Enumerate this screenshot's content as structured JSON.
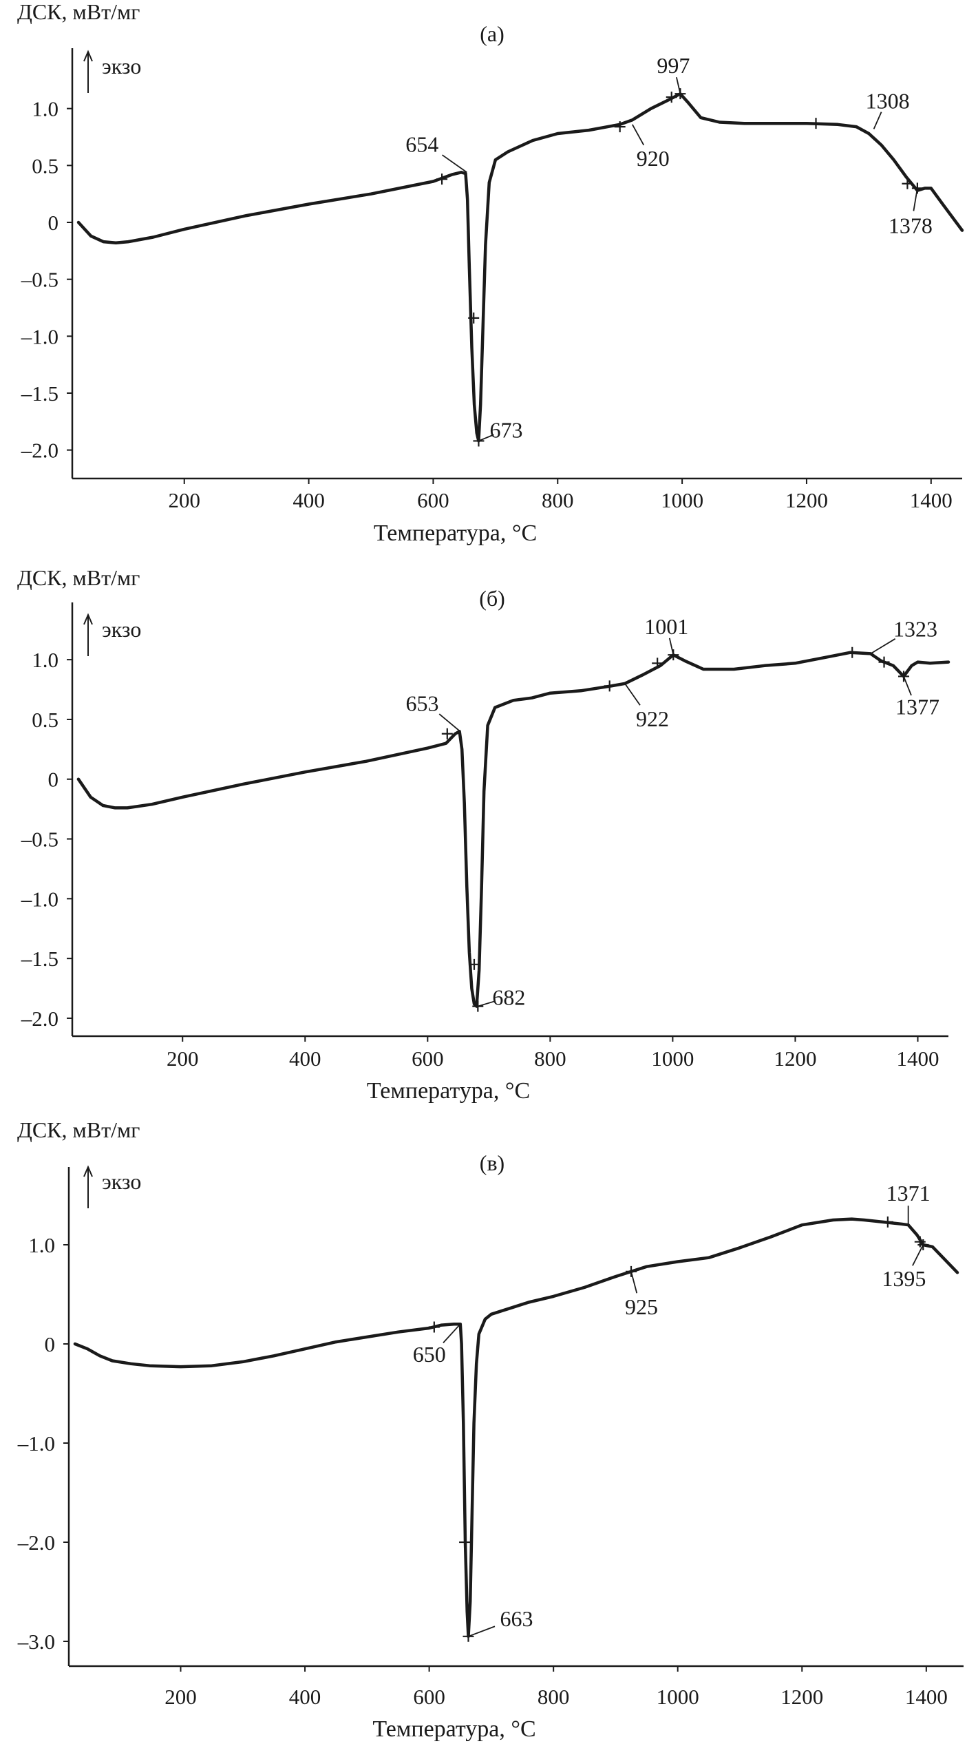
{
  "chart_data": [
    {
      "type": "line",
      "panel_label": "(а)",
      "ylabel": "ДСК, мВт/мг",
      "exo_label": "экзо",
      "xlabel": "Температура, °С",
      "xlim": [
        20,
        1450
      ],
      "ylim": [
        -2.25,
        1.5
      ],
      "xticks": [
        200,
        400,
        600,
        800,
        1000,
        1200,
        1400
      ],
      "xtick_labels": [
        "200",
        "400",
        "600",
        "800",
        "1000",
        "1200",
        "1400"
      ],
      "yticks": [
        1.0,
        0.5,
        0,
        -0.5,
        -1.0,
        -1.5,
        -2.0
      ],
      "ytick_labels": [
        "1.0",
        "0.5",
        "0",
        "–0.5",
        "–1.0",
        "–1.5",
        "–2.0"
      ],
      "series": [
        {
          "x": [
            30,
            50,
            70,
            90,
            110,
            150,
            200,
            300,
            400,
            500,
            600,
            630,
            645,
            652,
            655,
            658,
            662,
            666,
            670,
            673,
            676,
            680,
            684,
            690,
            700,
            720,
            760,
            800,
            850,
            900,
            920,
            950,
            980,
            997,
            1010,
            1030,
            1060,
            1100,
            1150,
            1200,
            1250,
            1280,
            1300,
            1320,
            1340,
            1360,
            1378,
            1390,
            1400,
            1420,
            1450
          ],
          "y": [
            0.0,
            -0.12,
            -0.17,
            -0.18,
            -0.17,
            -0.13,
            -0.06,
            0.06,
            0.16,
            0.25,
            0.36,
            0.42,
            0.44,
            0.43,
            0.2,
            -0.4,
            -1.1,
            -1.6,
            -1.85,
            -1.92,
            -1.6,
            -0.9,
            -0.2,
            0.35,
            0.55,
            0.62,
            0.72,
            0.78,
            0.81,
            0.86,
            0.9,
            1.0,
            1.08,
            1.13,
            1.05,
            0.92,
            0.88,
            0.87,
            0.87,
            0.87,
            0.86,
            0.84,
            0.78,
            0.68,
            0.55,
            0.4,
            0.28,
            0.3,
            0.3,
            0.15,
            -0.07
          ]
        }
      ],
      "annotations": [
        {
          "text": "654",
          "x": 654,
          "y": 0.44
        },
        {
          "text": "673",
          "x": 673,
          "y": -1.92
        },
        {
          "text": "920",
          "x": 920,
          "y": 0.86
        },
        {
          "text": "997",
          "x": 997,
          "y": 1.13
        },
        {
          "text": "1308",
          "x": 1308,
          "y": 0.82
        },
        {
          "text": "1378",
          "x": 1378,
          "y": 0.3
        }
      ],
      "markers": [
        {
          "x": 614,
          "y": 0.38
        },
        {
          "x": 665,
          "y": -0.84
        },
        {
          "x": 673,
          "y": -1.92
        },
        {
          "x": 900,
          "y": 0.84
        },
        {
          "x": 983,
          "y": 1.1
        },
        {
          "x": 997,
          "y": 1.13
        },
        {
          "x": 1215,
          "y": 0.87
        },
        {
          "x": 1362,
          "y": 0.34
        },
        {
          "x": 1378,
          "y": 0.3
        }
      ]
    },
    {
      "type": "line",
      "panel_label": "(б)",
      "ylabel": "ДСК, мВт/мг",
      "exo_label": "экзо",
      "xlabel": "Температура, °С",
      "xlim": [
        20,
        1450
      ],
      "ylim": [
        -2.15,
        1.45
      ],
      "xticks": [
        200,
        400,
        600,
        800,
        1000,
        1200,
        1400
      ],
      "xtick_labels": [
        "200",
        "400",
        "600",
        "800",
        "1000",
        "1200",
        "1400"
      ],
      "yticks": [
        1.0,
        0.5,
        0,
        -0.5,
        -1.0,
        -1.5,
        -2.0
      ],
      "ytick_labels": [
        "1.0",
        "0.5",
        "0",
        "–0.5",
        "–1.0",
        "–1.5",
        "–2.0"
      ],
      "series": [
        {
          "x": [
            30,
            50,
            70,
            90,
            110,
            150,
            200,
            300,
            400,
            500,
            600,
            630,
            645,
            652,
            656,
            660,
            664,
            668,
            672,
            676,
            680,
            684,
            688,
            692,
            698,
            710,
            740,
            770,
            800,
            850,
            900,
            922,
            950,
            980,
            1001,
            1020,
            1050,
            1100,
            1150,
            1200,
            1250,
            1290,
            1323,
            1340,
            1360,
            1377,
            1390,
            1400,
            1420,
            1450
          ],
          "y": [
            0.0,
            -0.15,
            -0.22,
            -0.24,
            -0.24,
            -0.21,
            -0.15,
            -0.04,
            0.06,
            0.15,
            0.26,
            0.3,
            0.38,
            0.4,
            0.25,
            -0.2,
            -0.9,
            -1.45,
            -1.75,
            -1.88,
            -1.9,
            -1.6,
            -0.9,
            -0.1,
            0.45,
            0.6,
            0.66,
            0.68,
            0.72,
            0.74,
            0.78,
            0.8,
            0.87,
            0.95,
            1.04,
            0.99,
            0.92,
            0.92,
            0.95,
            0.97,
            1.02,
            1.06,
            1.05,
            0.99,
            0.95,
            0.86,
            0.95,
            0.98,
            0.97,
            0.98
          ]
        }
      ],
      "annotations": [
        {
          "text": "653",
          "x": 653,
          "y": 0.4
        },
        {
          "text": "682",
          "x": 682,
          "y": -1.9
        },
        {
          "text": "922",
          "x": 922,
          "y": 0.8
        },
        {
          "text": "1001",
          "x": 1001,
          "y": 1.04
        },
        {
          "text": "1323",
          "x": 1323,
          "y": 1.05
        },
        {
          "text": "1377",
          "x": 1377,
          "y": 0.86
        }
      ],
      "markers": [
        {
          "x": 632,
          "y": 0.38
        },
        {
          "x": 676,
          "y": -1.55
        },
        {
          "x": 682,
          "y": -1.9
        },
        {
          "x": 897,
          "y": 0.78
        },
        {
          "x": 975,
          "y": 0.97
        },
        {
          "x": 1001,
          "y": 1.04
        },
        {
          "x": 1293,
          "y": 1.06
        },
        {
          "x": 1345,
          "y": 0.98
        },
        {
          "x": 1377,
          "y": 0.86
        }
      ]
    },
    {
      "type": "line",
      "panel_label": "(в)",
      "ylabel": "ДСК, мВт/мг",
      "exo_label": "экзо",
      "xlabel": "Температура, °С",
      "xlim": [
        20,
        1460
      ],
      "ylim": [
        -3.25,
        1.75
      ],
      "xticks": [
        200,
        400,
        600,
        800,
        1000,
        1200,
        1400
      ],
      "xtick_labels": [
        "200",
        "400",
        "600",
        "800",
        "1000",
        "1200",
        "1400"
      ],
      "yticks": [
        1.0,
        0,
        -1.0,
        -2.0,
        -3.0
      ],
      "ytick_labels": [
        "1.0",
        "0",
        "–1.0",
        "–2.0",
        "–3.0"
      ],
      "series": [
        {
          "x": [
            30,
            50,
            70,
            90,
            120,
            150,
            200,
            250,
            300,
            350,
            400,
            450,
            500,
            550,
            600,
            620,
            640,
            650,
            652,
            655,
            658,
            661,
            663,
            666,
            669,
            672,
            676,
            680,
            690,
            700,
            730,
            760,
            800,
            850,
            900,
            925,
            950,
            1000,
            1050,
            1100,
            1150,
            1200,
            1250,
            1280,
            1300,
            1330,
            1360,
            1371,
            1385,
            1395,
            1410,
            1430,
            1450
          ],
          "y": [
            0.0,
            -0.05,
            -0.12,
            -0.17,
            -0.2,
            -0.22,
            -0.23,
            -0.22,
            -0.18,
            -0.12,
            -0.05,
            0.02,
            0.07,
            0.12,
            0.16,
            0.19,
            0.2,
            0.2,
            0.0,
            -0.8,
            -2.0,
            -2.7,
            -2.95,
            -2.6,
            -1.7,
            -0.8,
            -0.2,
            0.1,
            0.25,
            0.3,
            0.36,
            0.42,
            0.48,
            0.57,
            0.68,
            0.73,
            0.78,
            0.83,
            0.87,
            0.97,
            1.08,
            1.2,
            1.25,
            1.26,
            1.25,
            1.23,
            1.21,
            1.2,
            1.1,
            1.0,
            0.98,
            0.85,
            0.72
          ]
        }
      ],
      "annotations": [
        {
          "text": "650",
          "x": 650,
          "y": 0.2
        },
        {
          "text": "663",
          "x": 663,
          "y": -2.95
        },
        {
          "text": "925",
          "x": 925,
          "y": 0.73
        },
        {
          "text": "1371",
          "x": 1371,
          "y": 1.2
        },
        {
          "text": "1395",
          "x": 1395,
          "y": 1.0
        }
      ],
      "markers": [
        {
          "x": 608,
          "y": 0.17
        },
        {
          "x": 657,
          "y": -2.0
        },
        {
          "x": 663,
          "y": -2.95
        },
        {
          "x": 925,
          "y": 0.73
        },
        {
          "x": 1338,
          "y": 1.23
        },
        {
          "x": 1390,
          "y": 1.03
        },
        {
          "x": 1395,
          "y": 1.0
        }
      ]
    }
  ]
}
